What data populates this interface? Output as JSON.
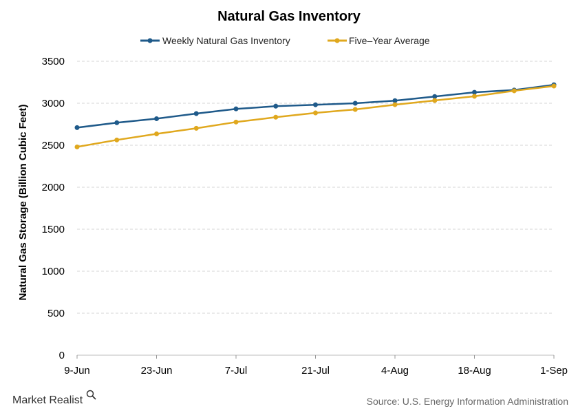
{
  "brand": {
    "name": "Market Realist"
  },
  "source": "Source: U.S. Energy Information Administration",
  "chart_data": {
    "type": "line",
    "title": "Natural Gas Inventory",
    "xlabel": "",
    "ylabel": "Natural Gas Storage (Billion Cubic Feet)",
    "ylim": [
      0,
      3500
    ],
    "yticks": [
      0,
      500,
      1000,
      1500,
      2000,
      2500,
      3000,
      3500
    ],
    "x": [
      "9-Jun",
      "16-Jun",
      "23-Jun",
      "30-Jun",
      "7-Jul",
      "14-Jul",
      "21-Jul",
      "28-Jul",
      "4-Aug",
      "11-Aug",
      "18-Aug",
      "25-Aug",
      "1-Sep"
    ],
    "xtick_labels": [
      "9-Jun",
      "23-Jun",
      "7-Jul",
      "21-Jul",
      "4-Aug",
      "18-Aug",
      "1-Sep"
    ],
    "grid": true,
    "legend_position": "top",
    "series": [
      {
        "name": "Weekly Natural Gas Inventory",
        "color": "#1f5a8a",
        "values": [
          2710,
          2768,
          2816,
          2877,
          2933,
          2965,
          2982,
          3000,
          3031,
          3080,
          3130,
          3157,
          3220
        ]
      },
      {
        "name": "Five–Year Average",
        "color": "#e0a81e",
        "values": [
          2480,
          2563,
          2635,
          2702,
          2776,
          2834,
          2885,
          2926,
          2983,
          3033,
          3083,
          3148,
          3205
        ]
      }
    ]
  }
}
